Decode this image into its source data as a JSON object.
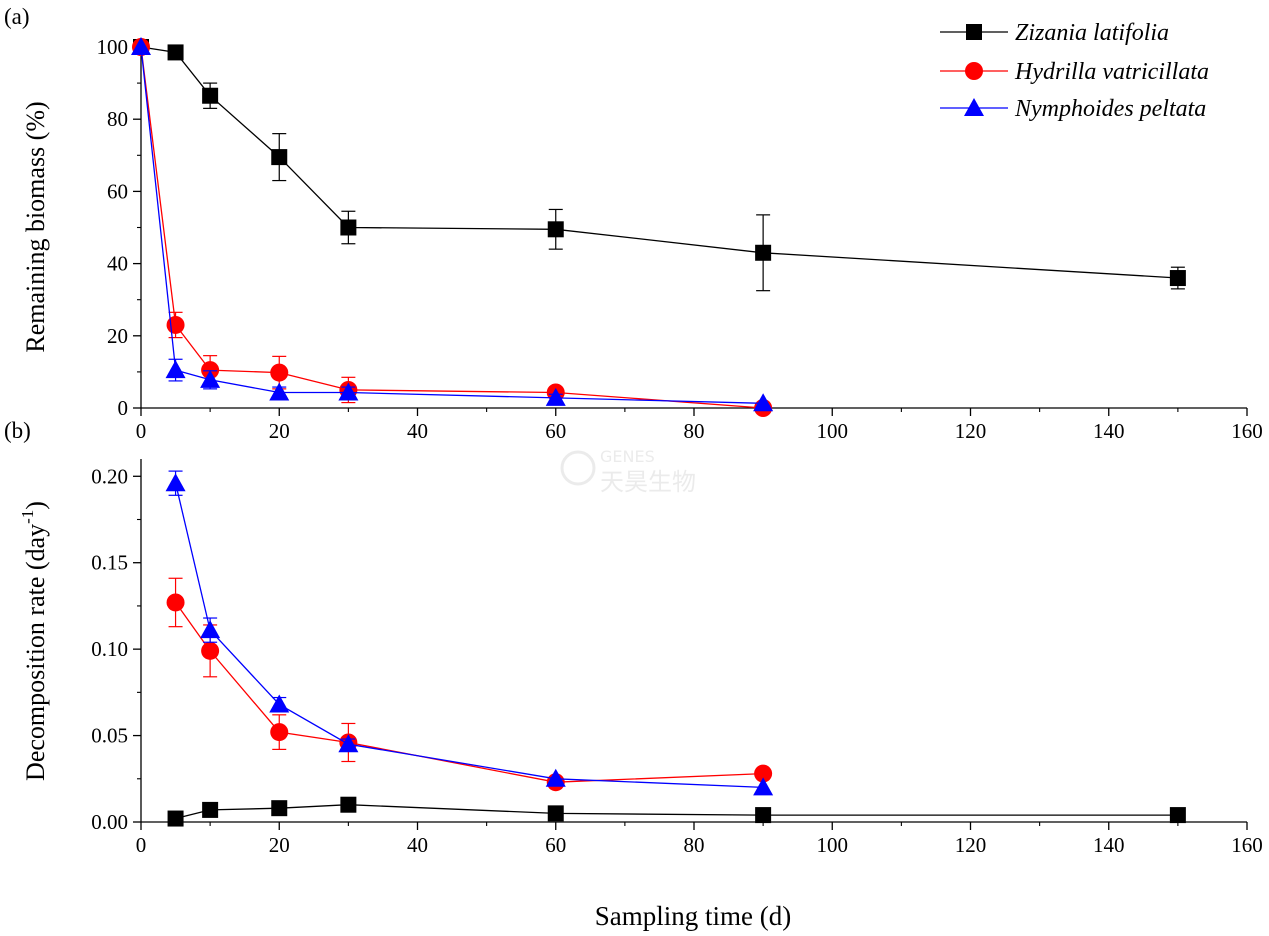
{
  "figure": {
    "xlabel": "Sampling time (d)"
  },
  "watermark": {
    "small": "GENES",
    "large": "天昊生物"
  },
  "chart_data": [
    {
      "type": "line",
      "panel_label": "(a)",
      "xlabel": "Sampling time (d)",
      "ylabel": "Remaining biomass (%)",
      "xlim": [
        0,
        160
      ],
      "ylim": [
        0,
        100
      ],
      "x_ticks": [
        0,
        20,
        40,
        60,
        80,
        100,
        120,
        140,
        160
      ],
      "x_tick_labels": [
        "0",
        "20",
        "40",
        "60",
        "80",
        "100",
        "120",
        "140",
        "160"
      ],
      "y_ticks": [
        0,
        20,
        40,
        60,
        80,
        100
      ],
      "y_tick_labels": [
        "0",
        "20",
        "40",
        "60",
        "80",
        "100"
      ],
      "grid": false,
      "legend_position": "top-right",
      "series": [
        {
          "name": "Zizania latifolia",
          "color": "#000000",
          "marker": "square",
          "x": [
            0,
            5,
            10,
            20,
            30,
            60,
            90,
            150
          ],
          "y": [
            100,
            98.5,
            86.5,
            69.5,
            50,
            49.5,
            43,
            36
          ],
          "err": [
            0,
            0,
            3.5,
            6.5,
            4.5,
            5.5,
            10.5,
            3
          ]
        },
        {
          "name": "Hydrilla vatricillata",
          "color": "#ff0000",
          "marker": "circle",
          "x": [
            0,
            5,
            10,
            20,
            30,
            60,
            90
          ],
          "y": [
            100,
            23,
            10.5,
            9.8,
            5,
            4.3,
            0
          ],
          "err": [
            0,
            3.5,
            4,
            4.5,
            3.5,
            1,
            0
          ]
        },
        {
          "name": "Nymphoides peltata",
          "color": "#0000ff",
          "marker": "triangle",
          "x": [
            0,
            5,
            10,
            20,
            30,
            60,
            90
          ],
          "y": [
            100,
            10.5,
            7.8,
            4.3,
            4.3,
            2.8,
            1.3
          ],
          "err": [
            0,
            3,
            2.5,
            1.5,
            1.5,
            1,
            0
          ]
        }
      ]
    },
    {
      "type": "line",
      "panel_label": "(b)",
      "xlabel": "Sampling time (d)",
      "ylabel": "Decomposition rate (day",
      "ylabel_sup": "-1",
      "ylabel_close": ")",
      "xlim": [
        0,
        160
      ],
      "ylim": [
        0,
        0.21
      ],
      "x_ticks": [
        0,
        20,
        40,
        60,
        80,
        100,
        120,
        140,
        160
      ],
      "x_tick_labels": [
        "0",
        "20",
        "40",
        "60",
        "80",
        "100",
        "120",
        "140",
        "160"
      ],
      "y_ticks": [
        0,
        0.05,
        0.1,
        0.15,
        0.2
      ],
      "y_tick_labels": [
        "0.00",
        "0.05",
        "0.10",
        "0.15",
        "0.20"
      ],
      "grid": false,
      "series": [
        {
          "name": "Zizania latifolia",
          "color": "#000000",
          "marker": "square",
          "x": [
            5,
            10,
            20,
            30,
            60,
            90,
            150
          ],
          "y": [
            0.002,
            0.007,
            0.008,
            0.01,
            0.005,
            0.004,
            0.004
          ],
          "err": [
            0,
            0,
            0,
            0,
            0,
            0,
            0
          ]
        },
        {
          "name": "Hydrilla vatricillata",
          "color": "#ff0000",
          "marker": "circle",
          "x": [
            5,
            10,
            20,
            30,
            60,
            90
          ],
          "y": [
            0.127,
            0.099,
            0.052,
            0.046,
            0.023,
            0.028
          ],
          "err": [
            0.014,
            0.015,
            0.01,
            0.011,
            0,
            0
          ]
        },
        {
          "name": "Nymphoides peltata",
          "color": "#0000ff",
          "marker": "triangle",
          "x": [
            5,
            10,
            20,
            30,
            60,
            90
          ],
          "y": [
            0.196,
            0.111,
            0.068,
            0.045,
            0.025,
            0.02
          ],
          "err": [
            0.007,
            0.007,
            0.004,
            0.003,
            0,
            0
          ]
        }
      ]
    }
  ]
}
